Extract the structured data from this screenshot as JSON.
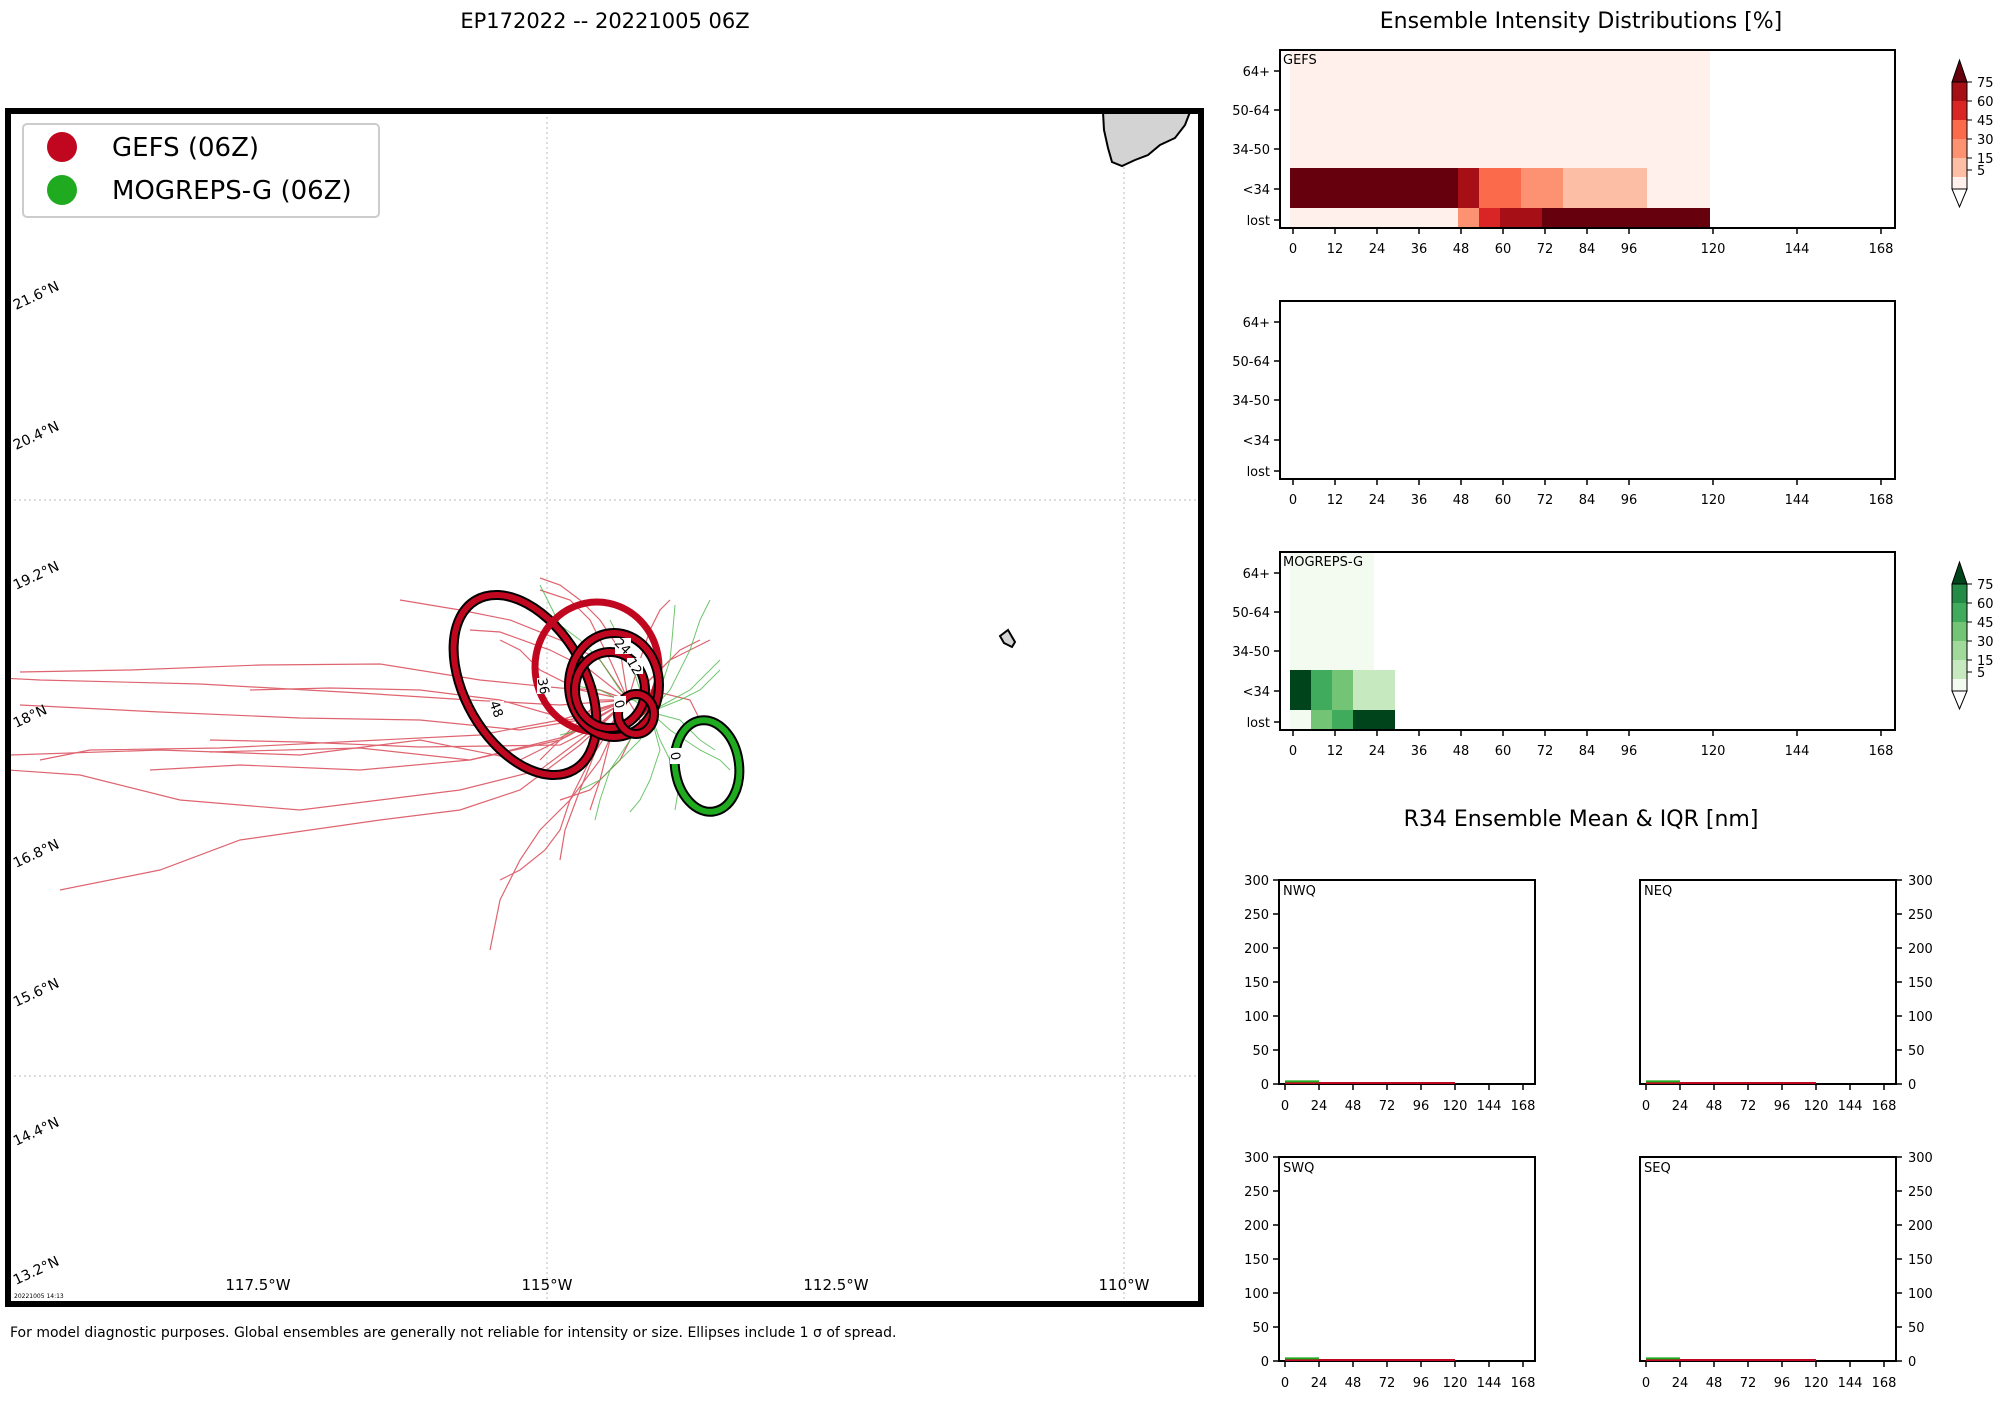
{
  "colors": {
    "gefs": "#c0071f",
    "gefs_dark": "#67000d",
    "mogreps": "#1faa1f",
    "land": "#d3d3d3"
  },
  "map": {
    "title": "EP172022 -- 20221005 06Z",
    "legend": [
      {
        "label": "GEFS (06Z)",
        "color": "#c0071f"
      },
      {
        "label": "MOGREPS-G (06Z)",
        "color": "#1faa1f"
      }
    ],
    "lat_labels": [
      "21.6°N",
      "20.4°N",
      "19.2°N",
      "18°N",
      "16.8°N",
      "15.6°N",
      "14.4°N",
      "13.2°N"
    ],
    "lon_labels": [
      "117.5°W",
      "115°W",
      "112.5°W",
      "110°W"
    ],
    "ellipse_labels": [
      "48",
      "36",
      "24",
      "12",
      "0",
      "0"
    ],
    "timestamp": "20221005 14:13",
    "footnote": "For model diagnostic purposes. Global ensembles are generally not reliable for intensity or size. Ellipses include 1 σ of spread."
  },
  "intensity": {
    "title": "Ensemble Intensity Distributions [%]",
    "row_labels": [
      "64+",
      "50-64",
      "34-50",
      "<34",
      "lost"
    ],
    "xticks": [
      "0",
      "12",
      "24",
      "36",
      "48",
      "60",
      "72",
      "84",
      "96",
      "120",
      "144",
      "168"
    ],
    "colorbar_ticks": [
      "75",
      "60",
      "45",
      "30",
      "15",
      "5"
    ],
    "panels": [
      "GEFS",
      "",
      "MOGREPS-G"
    ]
  },
  "chart_data": [
    {
      "type": "heatmap",
      "name": "GEFS",
      "rows": [
        "64+",
        "50-64",
        "34-50",
        "<34",
        "lost"
      ],
      "cells": [
        {
          "row": "64+",
          "from": 0,
          "to": 120,
          "value": 3
        },
        {
          "row": "50-64",
          "from": 0,
          "to": 120,
          "value": 3
        },
        {
          "row": "34-50",
          "from": 0,
          "to": 120,
          "value": 3
        },
        {
          "row": "<34",
          "from": 0,
          "to": 48,
          "value": 100
        },
        {
          "row": "<34",
          "from": 48,
          "to": 54,
          "value": 67
        },
        {
          "row": "<34",
          "from": 54,
          "to": 66,
          "value": 45
        },
        {
          "row": "<34",
          "from": 66,
          "to": 78,
          "value": 30
        },
        {
          "row": "<34",
          "from": 78,
          "to": 102,
          "value": 12
        },
        {
          "row": "<34",
          "from": 102,
          "to": 120,
          "value": 3
        },
        {
          "row": "lost",
          "from": 0,
          "to": 48,
          "value": 3
        },
        {
          "row": "lost",
          "from": 48,
          "to": 54,
          "value": 30
        },
        {
          "row": "lost",
          "from": 54,
          "to": 60,
          "value": 55
        },
        {
          "row": "lost",
          "from": 60,
          "to": 72,
          "value": 66
        },
        {
          "row": "lost",
          "from": 72,
          "to": 120,
          "value": 100
        }
      ]
    },
    {
      "type": "heatmap",
      "name": "",
      "rows": [
        "64+",
        "50-64",
        "34-50",
        "<34",
        "lost"
      ],
      "cells": []
    },
    {
      "type": "heatmap",
      "name": "MOGREPS-G",
      "rows": [
        "64+",
        "50-64",
        "34-50",
        "<34",
        "lost"
      ],
      "cells": [
        {
          "row": "64+",
          "from": 0,
          "to": 24,
          "value": 3
        },
        {
          "row": "50-64",
          "from": 0,
          "to": 24,
          "value": 3
        },
        {
          "row": "34-50",
          "from": 0,
          "to": 24,
          "value": 3
        },
        {
          "row": "<34",
          "from": 0,
          "to": 6,
          "value": 100
        },
        {
          "row": "<34",
          "from": 6,
          "to": 12,
          "value": 55
        },
        {
          "row": "<34",
          "from": 12,
          "to": 18,
          "value": 40
        },
        {
          "row": "<34",
          "from": 18,
          "to": 30,
          "value": 12
        },
        {
          "row": "lost",
          "from": 0,
          "to": 6,
          "value": 3
        },
        {
          "row": "lost",
          "from": 6,
          "to": 12,
          "value": 40
        },
        {
          "row": "lost",
          "from": 12,
          "to": 18,
          "value": 60
        },
        {
          "row": "lost",
          "from": 18,
          "to": 30,
          "value": 100
        }
      ]
    },
    {
      "type": "line",
      "name": "NWQ",
      "xticks": [
        0,
        24,
        48,
        72,
        96,
        120,
        144,
        168
      ],
      "ylim": [
        0,
        300
      ],
      "yticks": [
        0,
        50,
        100,
        150,
        200,
        250,
        300
      ],
      "series": [
        {
          "name": "GEFS",
          "x": [
            0,
            120
          ],
          "y": [
            0,
            0
          ]
        },
        {
          "name": "MOGREPS-G",
          "x": [
            0,
            24
          ],
          "y": [
            1,
            1
          ]
        }
      ]
    },
    {
      "type": "line",
      "name": "NEQ",
      "xticks": [
        0,
        24,
        48,
        72,
        96,
        120,
        144,
        168
      ],
      "ylim": [
        0,
        300
      ],
      "yticks": [
        0,
        50,
        100,
        150,
        200,
        250,
        300
      ],
      "series": [
        {
          "name": "GEFS",
          "x": [
            0,
            120
          ],
          "y": [
            0,
            0
          ]
        },
        {
          "name": "MOGREPS-G",
          "x": [
            0,
            24
          ],
          "y": [
            1,
            1
          ]
        }
      ]
    },
    {
      "type": "line",
      "name": "SWQ",
      "xticks": [
        0,
        24,
        48,
        72,
        96,
        120,
        144,
        168
      ],
      "ylim": [
        0,
        300
      ],
      "yticks": [
        0,
        50,
        100,
        150,
        200,
        250,
        300
      ],
      "series": [
        {
          "name": "GEFS",
          "x": [
            0,
            120
          ],
          "y": [
            0,
            0
          ]
        },
        {
          "name": "MOGREPS-G",
          "x": [
            0,
            24
          ],
          "y": [
            1,
            1
          ]
        }
      ]
    },
    {
      "type": "line",
      "name": "SEQ",
      "xticks": [
        0,
        24,
        48,
        72,
        96,
        120,
        144,
        168
      ],
      "ylim": [
        0,
        300
      ],
      "yticks": [
        0,
        50,
        100,
        150,
        200,
        250,
        300
      ],
      "series": [
        {
          "name": "GEFS",
          "x": [
            0,
            120
          ],
          "y": [
            0,
            0
          ]
        },
        {
          "name": "MOGREPS-G",
          "x": [
            0,
            24
          ],
          "y": [
            1,
            1
          ]
        }
      ]
    }
  ],
  "r34": {
    "title": "R34 Ensemble Mean & IQR [nm]"
  }
}
